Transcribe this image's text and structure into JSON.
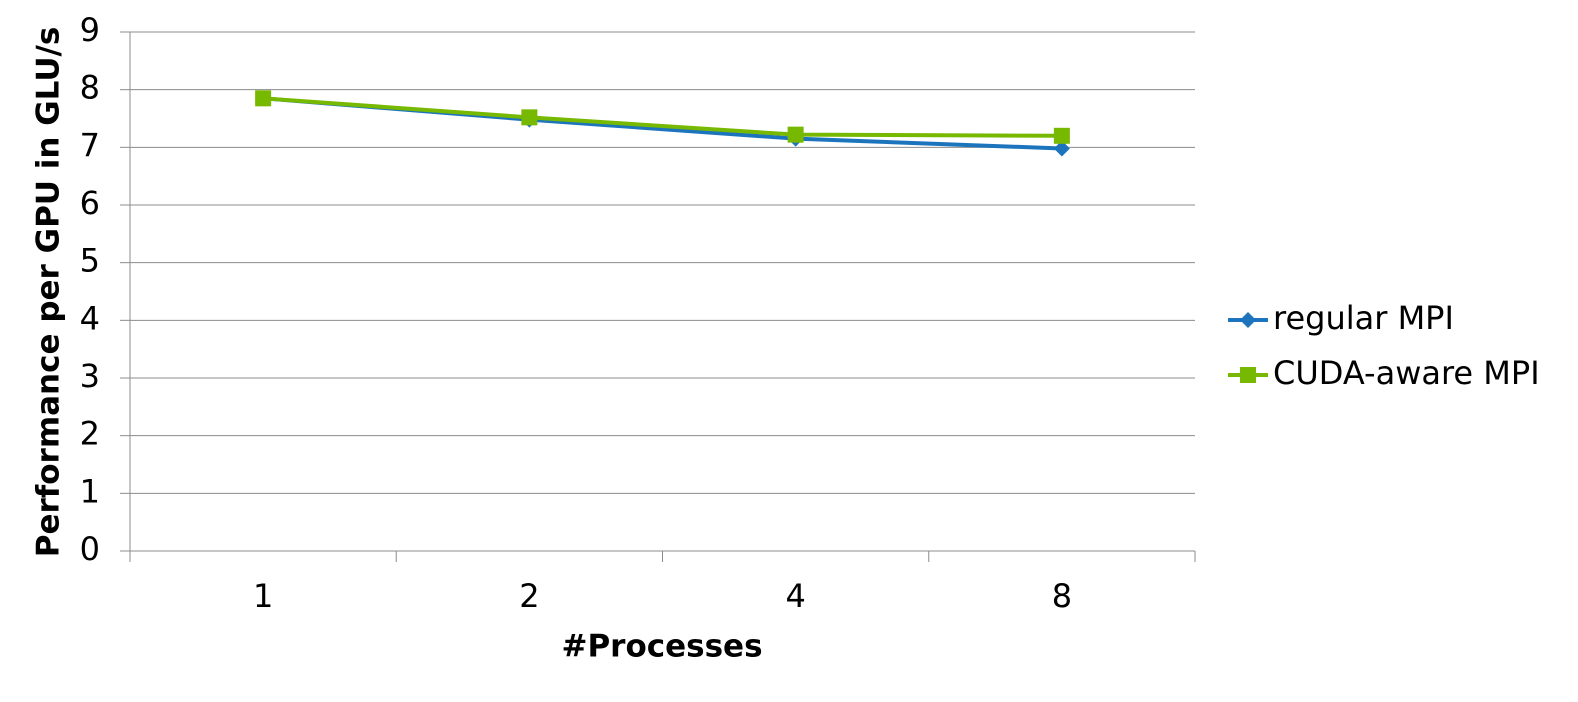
{
  "chart_data": {
    "type": "line",
    "categories": [
      "1",
      "2",
      "4",
      "8"
    ],
    "series": [
      {
        "name": "regular MPI",
        "color": "#1c75bc",
        "marker": "diamond",
        "values": [
          7.85,
          7.48,
          7.15,
          6.98
        ]
      },
      {
        "name": "CUDA-aware MPI",
        "color": "#76b900",
        "marker": "square",
        "values": [
          7.85,
          7.52,
          7.22,
          7.2
        ]
      }
    ],
    "ylim": [
      0,
      9
    ],
    "yticks": [
      0,
      1,
      2,
      3,
      4,
      5,
      6,
      7,
      8,
      9
    ],
    "xlabel": "#Processes",
    "ylabel": "Performance per GPU in GLU/s",
    "grid": true,
    "legend": "right"
  }
}
